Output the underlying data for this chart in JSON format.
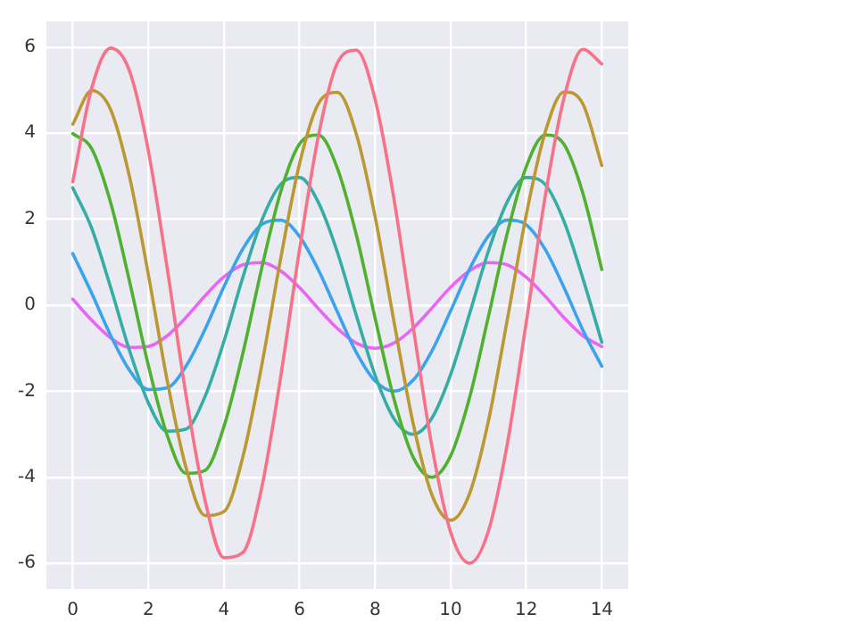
{
  "chart_data": {
    "type": "line",
    "x": [
      0,
      0.5,
      1,
      1.5,
      2,
      2.5,
      3,
      3.5,
      4,
      4.5,
      5,
      5.5,
      6,
      6.5,
      7,
      7.5,
      8,
      8.5,
      9,
      9.5,
      10,
      10.5,
      11,
      11.5,
      12,
      12.5,
      13,
      13.5,
      14
    ],
    "series": [
      {
        "color": "#f77189",
        "values": [
          2.87,
          5.05,
          5.98,
          5.45,
          3.59,
          0.85,
          -2.11,
          -4.54,
          -5.87,
          -5.75,
          -4.24,
          -1.67,
          1.29,
          3.94,
          5.63,
          5.93,
          4.79,
          2.47,
          -0.45,
          -3.26,
          -5.28,
          -6.0,
          -5.25,
          -3.22,
          -0.4,
          2.52,
          4.82,
          5.95,
          5.61
        ]
      },
      {
        "color": "#bb9832",
        "values": [
          4.21,
          4.99,
          4.55,
          2.99,
          0.71,
          -1.76,
          -3.79,
          -4.89,
          -4.8,
          -3.53,
          -1.4,
          1.08,
          3.29,
          4.69,
          4.95,
          3.99,
          2.06,
          -0.38,
          -2.72,
          -4.4,
          -5.0,
          -4.38,
          -2.69,
          -0.33,
          2.1,
          4.02,
          4.96,
          4.68,
          3.25
        ]
      },
      {
        "color": "#50b131",
        "values": [
          3.99,
          3.64,
          2.39,
          0.56,
          -1.4,
          -3.03,
          -3.91,
          -3.84,
          -2.82,
          -1.12,
          0.86,
          2.63,
          3.75,
          3.96,
          3.19,
          1.65,
          -0.3,
          -2.18,
          -3.52,
          -4.0,
          -3.5,
          -2.15,
          -0.26,
          1.68,
          3.22,
          3.96,
          3.74,
          2.6,
          0.83
        ]
      },
      {
        "color": "#36ada4",
        "values": [
          2.73,
          1.79,
          0.42,
          -1.05,
          -2.27,
          -2.93,
          -2.88,
          -2.12,
          -0.84,
          0.65,
          1.97,
          2.81,
          2.97,
          2.39,
          1.24,
          -0.23,
          -1.63,
          -2.64,
          -3.0,
          -2.63,
          -1.61,
          -0.2,
          1.26,
          2.41,
          2.97,
          2.81,
          1.95,
          0.62,
          -0.86
        ]
      },
      {
        "color": "#3ba3ec",
        "values": [
          1.2,
          0.28,
          -0.7,
          -1.51,
          -1.96,
          -1.92,
          -1.41,
          -0.56,
          0.43,
          1.31,
          1.88,
          1.98,
          1.6,
          0.82,
          -0.15,
          -1.09,
          -1.76,
          -2.0,
          -1.75,
          -1.07,
          -0.13,
          0.84,
          1.61,
          1.98,
          1.87,
          1.3,
          0.41,
          -0.58,
          -1.42
        ]
      },
      {
        "color": "#e866f4",
        "values": [
          0.14,
          -0.35,
          -0.76,
          -0.98,
          -0.96,
          -0.71,
          -0.28,
          0.22,
          0.66,
          0.94,
          0.99,
          0.8,
          0.41,
          -0.08,
          -0.54,
          -0.88,
          -1.0,
          -0.88,
          -0.54,
          -0.07,
          0.42,
          0.8,
          0.99,
          0.94,
          0.65,
          0.21,
          -0.29,
          -0.71,
          -0.96
        ]
      }
    ],
    "xlim": [
      -0.7,
      14.7
    ],
    "xticks": [
      0,
      2,
      4,
      6,
      8,
      10,
      12,
      14
    ],
    "ylim": [
      -6.6,
      6.6
    ],
    "yticks": [
      -6,
      -4,
      -2,
      0,
      2,
      4,
      6
    ],
    "grid": true,
    "marker": "none",
    "line_style": "solid"
  }
}
